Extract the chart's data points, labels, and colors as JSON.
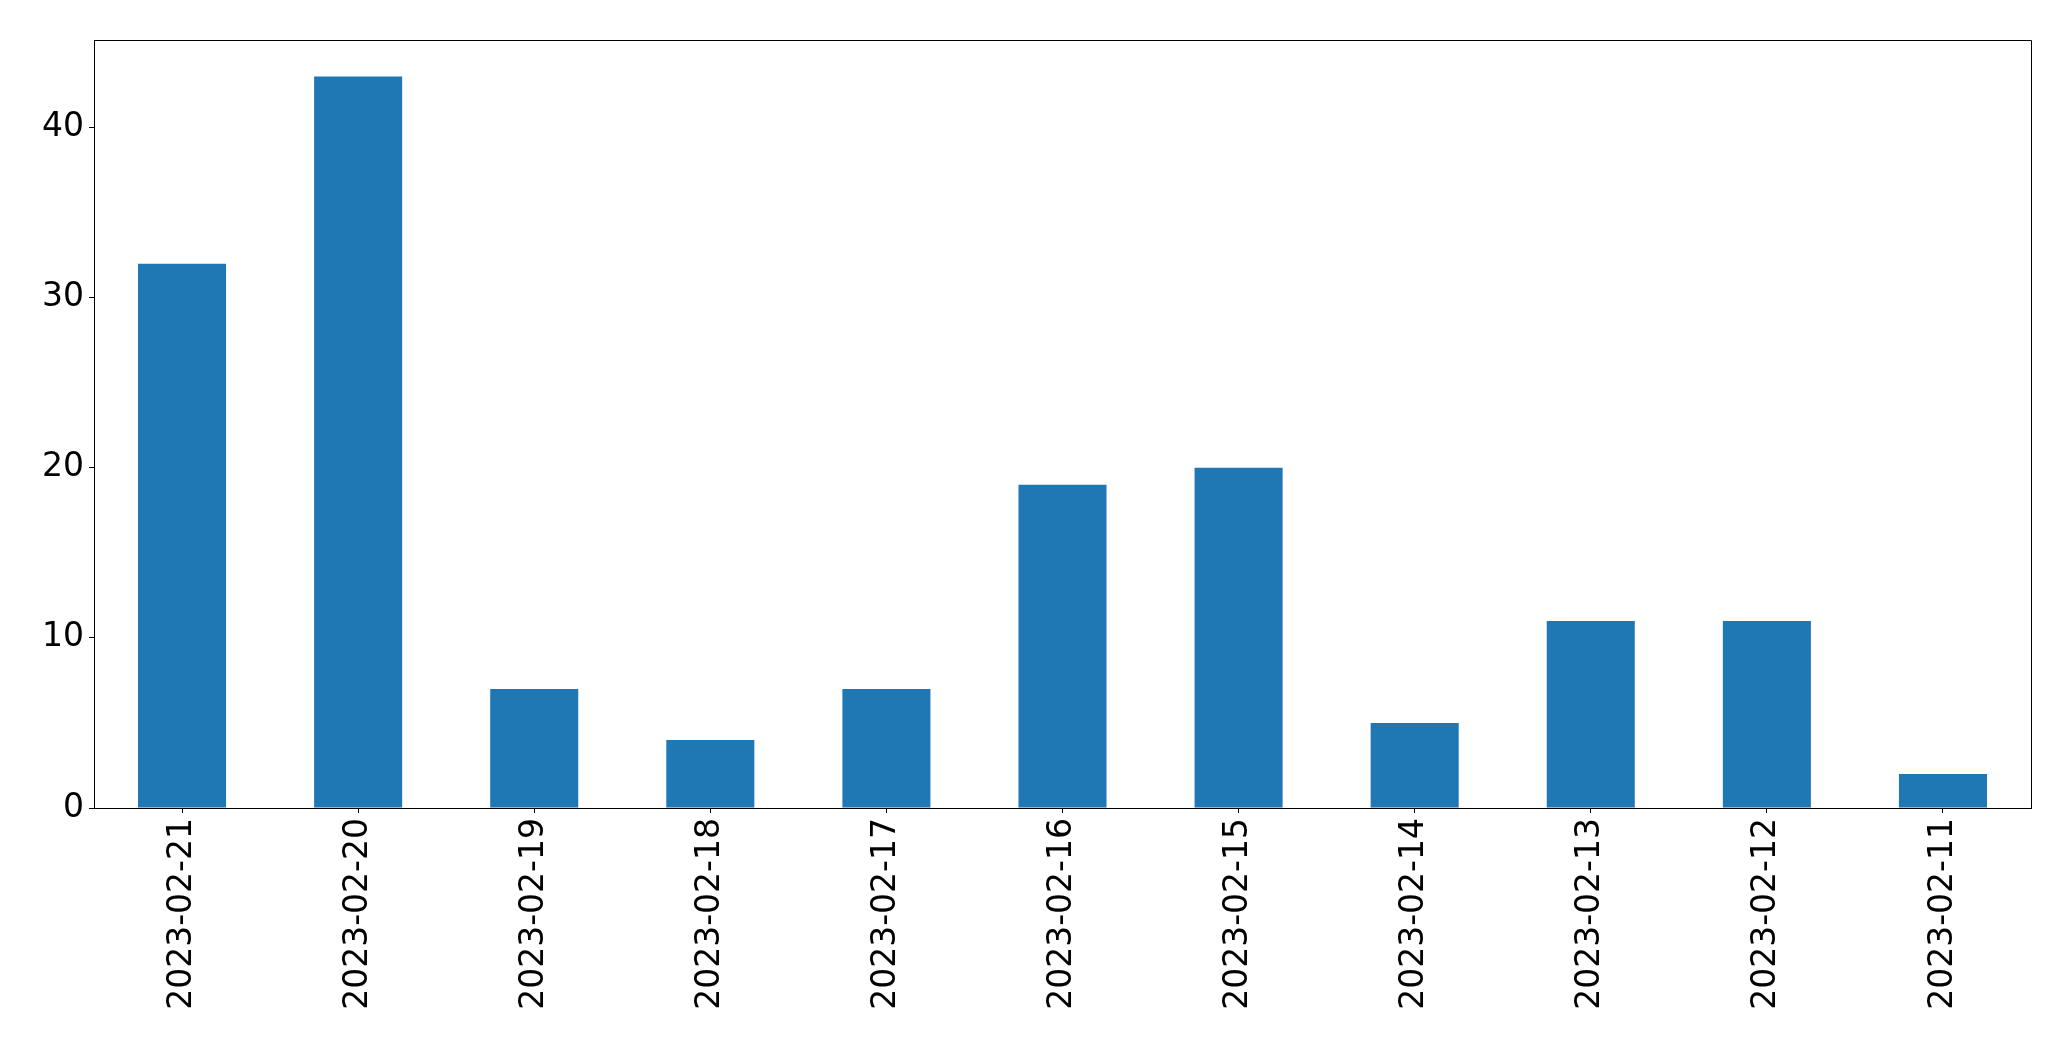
{
  "chart_data": {
    "type": "bar",
    "categories": [
      "2023-02-21",
      "2023-02-20",
      "2023-02-19",
      "2023-02-18",
      "2023-02-17",
      "2023-02-16",
      "2023-02-15",
      "2023-02-14",
      "2023-02-13",
      "2023-02-12",
      "2023-02-11"
    ],
    "values": [
      32,
      43,
      7,
      4,
      7,
      19,
      20,
      5,
      11,
      11,
      2
    ],
    "color": "#1f77b4",
    "ylim": [
      0,
      45.15
    ],
    "yticks": [
      0,
      10,
      20,
      30,
      40
    ],
    "grid": false,
    "legend": false
  }
}
